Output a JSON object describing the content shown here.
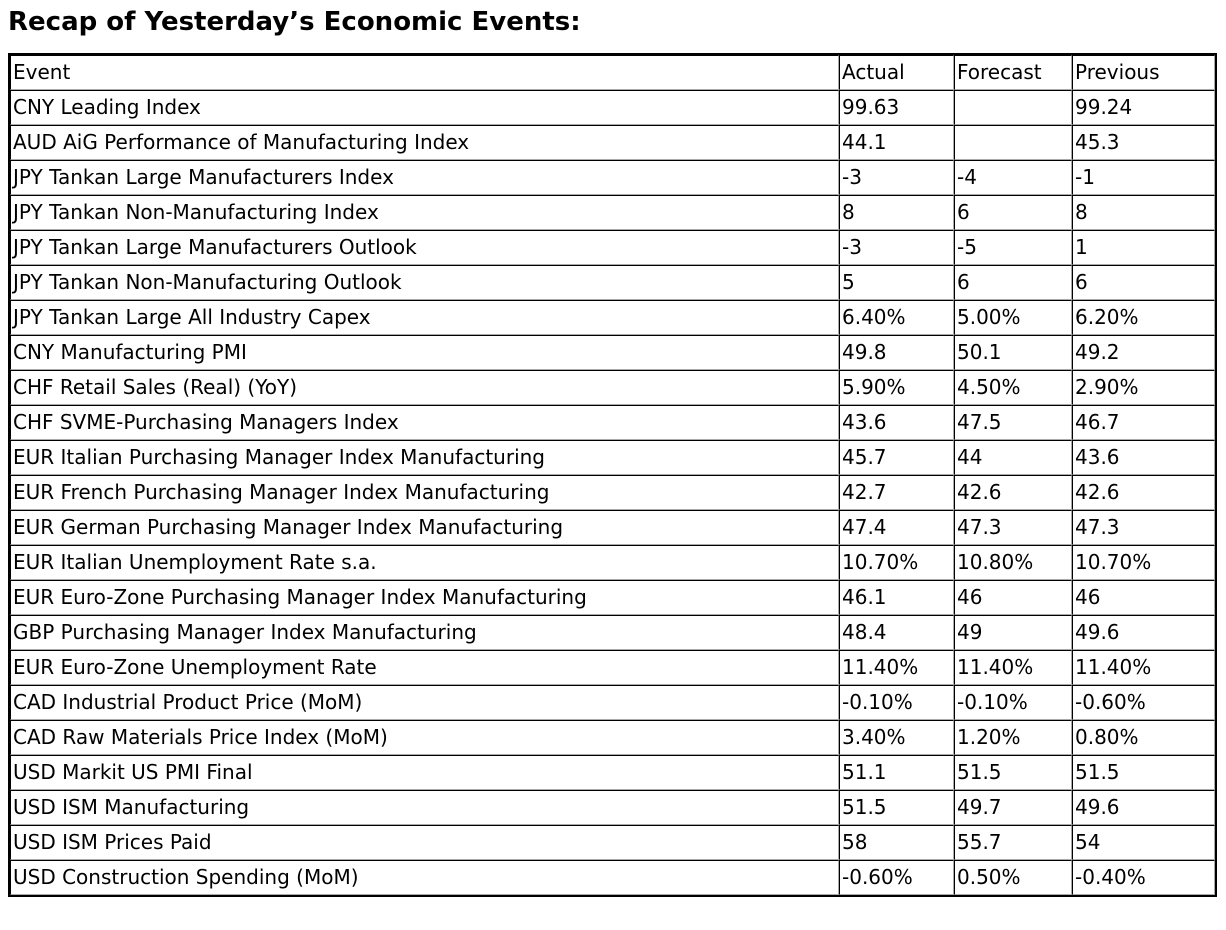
{
  "page": {
    "title": "Recap of Yesterday’s Economic Events:"
  },
  "colors": {
    "background": "#ffffff",
    "text": "#000000",
    "border_dark": "#000000",
    "border_light": "#a9a9a9"
  },
  "table": {
    "columns": [
      "Event",
      "Actual",
      "Forecast",
      "Previous"
    ],
    "rows": [
      {
        "event": "CNY Leading Index",
        "actual": "99.63",
        "forecast": "",
        "previous": "99.24"
      },
      {
        "event": "AUD AiG Performance of Manufacturing Index",
        "actual": "44.1",
        "forecast": "",
        "previous": "45.3"
      },
      {
        "event": "JPY Tankan Large Manufacturers Index",
        "actual": "-3",
        "forecast": "-4",
        "previous": "-1"
      },
      {
        "event": "JPY Tankan Non-Manufacturing Index",
        "actual": "8",
        "forecast": "6",
        "previous": "8"
      },
      {
        "event": "JPY Tankan Large Manufacturers Outlook",
        "actual": "-3",
        "forecast": "-5",
        "previous": "1"
      },
      {
        "event": "JPY Tankan Non-Manufacturing Outlook",
        "actual": "5",
        "forecast": "6",
        "previous": "6"
      },
      {
        "event": "JPY Tankan Large All Industry Capex",
        "actual": "6.40%",
        "forecast": "5.00%",
        "previous": "6.20%"
      },
      {
        "event": "CNY Manufacturing PMI",
        "actual": "49.8",
        "forecast": "50.1",
        "previous": "49.2"
      },
      {
        "event": "CHF Retail Sales (Real) (YoY)",
        "actual": "5.90%",
        "forecast": "4.50%",
        "previous": "2.90%"
      },
      {
        "event": "CHF SVME-Purchasing Managers Index",
        "actual": "43.6",
        "forecast": "47.5",
        "previous": "46.7"
      },
      {
        "event": "EUR Italian Purchasing Manager Index Manufacturing",
        "actual": "45.7",
        "forecast": "44",
        "previous": "43.6"
      },
      {
        "event": "EUR French Purchasing Manager Index Manufacturing",
        "actual": "42.7",
        "forecast": "42.6",
        "previous": "42.6"
      },
      {
        "event": "EUR German Purchasing Manager Index Manufacturing",
        "actual": "47.4",
        "forecast": "47.3",
        "previous": "47.3"
      },
      {
        "event": "EUR Italian Unemployment Rate s.a.",
        "actual": "10.70%",
        "forecast": "10.80%",
        "previous": "10.70%"
      },
      {
        "event": "EUR Euro-Zone Purchasing Manager Index Manufacturing",
        "actual": "46.1",
        "forecast": "46",
        "previous": "46"
      },
      {
        "event": "GBP Purchasing Manager Index Manufacturing",
        "actual": "48.4",
        "forecast": "49",
        "previous": "49.6"
      },
      {
        "event": "EUR Euro-Zone Unemployment Rate",
        "actual": "11.40%",
        "forecast": "11.40%",
        "previous": "11.40%"
      },
      {
        "event": "CAD Industrial Product Price (MoM)",
        "actual": "-0.10%",
        "forecast": "-0.10%",
        "previous": "-0.60%"
      },
      {
        "event": "CAD Raw Materials Price Index (MoM)",
        "actual": "3.40%",
        "forecast": "1.20%",
        "previous": "0.80%"
      },
      {
        "event": "USD Markit US PMI Final",
        "actual": "51.1",
        "forecast": "51.5",
        "previous": "51.5"
      },
      {
        "event": "USD ISM Manufacturing",
        "actual": "51.5",
        "forecast": "49.7",
        "previous": "49.6"
      },
      {
        "event": "USD ISM Prices Paid",
        "actual": "58",
        "forecast": "55.7",
        "previous": "54"
      },
      {
        "event": "USD Construction Spending (MoM)",
        "actual": "-0.60%",
        "forecast": "0.50%",
        "previous": "-0.40%"
      }
    ]
  }
}
